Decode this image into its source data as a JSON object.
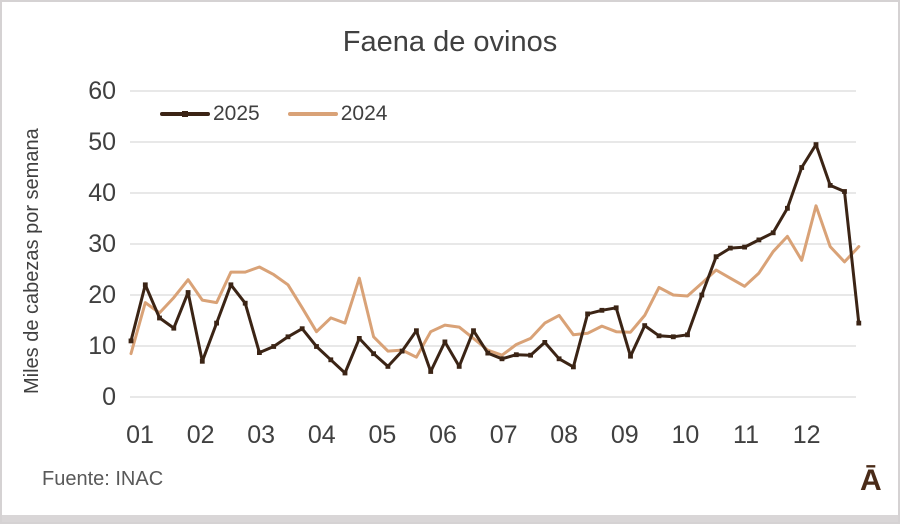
{
  "chart_data": {
    "type": "line",
    "title": "Faena de ovinos",
    "ylabel": "Miles de cabezas por semana",
    "xlabel": "",
    "x_unit": "week of year",
    "x": [
      1,
      2,
      3,
      4,
      5,
      6,
      7,
      8,
      9,
      10,
      11,
      12,
      13,
      14,
      15,
      16,
      17,
      18,
      19,
      20,
      21,
      22,
      23,
      24,
      25,
      26,
      27,
      28,
      29,
      30,
      31,
      32,
      33,
      34,
      35,
      36,
      37,
      38,
      39,
      40,
      41,
      42,
      43,
      44,
      45,
      46,
      47,
      48,
      49,
      50,
      51,
      52
    ],
    "x_tick_labels": [
      "01",
      "02",
      "03",
      "04",
      "05",
      "06",
      "07",
      "08",
      "09",
      "10",
      "11",
      "12"
    ],
    "y_ticks": [
      0,
      10,
      20,
      30,
      40,
      50,
      60
    ],
    "ylim": [
      0,
      60
    ],
    "grid": "horizontal",
    "grid_color": "#D9D9D9",
    "axis_text_color": "#404040",
    "legend_position": "top-left-inside",
    "series": [
      {
        "name": "2025",
        "color": "#3B2415",
        "marker": "square",
        "values": [
          11,
          22,
          15.5,
          13.5,
          20.5,
          7,
          14.5,
          22,
          18.4,
          8.7,
          9.9,
          11.8,
          13.4,
          9.9,
          7.3,
          4.7,
          11.5,
          8.5,
          6,
          9,
          13,
          5,
          10.8,
          6,
          13,
          8.6,
          7.5,
          8.3,
          8.2,
          10.7,
          7.5,
          5.9,
          16.3,
          17,
          17.5,
          8,
          14,
          12,
          11.8,
          12.2,
          20,
          27.5,
          29.2,
          29.4,
          30.8,
          32.2,
          37,
          45,
          49.5,
          41.5,
          40.3,
          14.5
        ]
      },
      {
        "name": "2024",
        "color": "#D9A277",
        "marker": "none",
        "values": [
          8.5,
          18.5,
          16.5,
          19.5,
          23,
          19,
          18.5,
          24.5,
          24.5,
          25.5,
          24,
          22,
          17.5,
          12.8,
          15.5,
          14.5,
          23.3,
          11.8,
          9,
          9.2,
          7.8,
          12.8,
          14.1,
          13.7,
          11.5,
          9.2,
          8.2,
          10.3,
          11.5,
          14.5,
          16,
          12.2,
          12.5,
          13.9,
          12.8,
          12.7,
          16,
          21.5,
          20,
          19.8,
          22.3,
          24.9,
          23.3,
          21.7,
          24.3,
          28.5,
          31.5,
          26.8,
          37.5,
          29.5,
          26.5,
          29.5
        ]
      }
    ]
  },
  "footer": {
    "source": "Fuente: INAC",
    "watermark": "Ā"
  }
}
